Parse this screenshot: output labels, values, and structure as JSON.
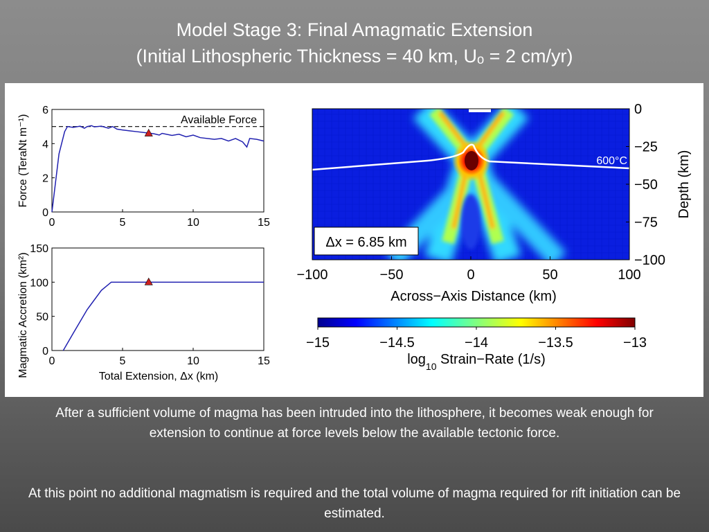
{
  "slide": {
    "title_line1": "Model Stage 3: Final Amagmatic Extension",
    "title_line2": "(Initial Lithospheric Thickness = 40 km, Uₒ = 2 cm/yr)",
    "caption_p1": "After a sufficient volume of magma has been intruded into the lithosphere, it becomes weak enough for extension to continue at force levels below the available tectonic force.",
    "caption_p2": "At this point no additional magmatism is required and the total volume of magma required for rift initiation can be estimated."
  },
  "chart_data": [
    {
      "type": "line",
      "ylabel": "Force (TeraNt m⁻¹)",
      "xlim": [
        0,
        15
      ],
      "ylim": [
        0,
        6
      ],
      "xticks": [
        "0",
        "5",
        "10",
        "15"
      ],
      "yticks": [
        "0",
        "2",
        "4",
        "6"
      ],
      "reference_line": {
        "y": 5.0,
        "label": "Available Force"
      },
      "series": [
        {
          "name": "Force",
          "color": "#2020b0",
          "points": [
            [
              0,
              0
            ],
            [
              0.5,
              3.4
            ],
            [
              0.9,
              4.7
            ],
            [
              1.1,
              5.0
            ],
            [
              1.5,
              4.95
            ],
            [
              2,
              5.02
            ],
            [
              2.3,
              4.9
            ],
            [
              2.5,
              5.0
            ],
            [
              2.8,
              5.05
            ],
            [
              3,
              4.98
            ],
            [
              3.5,
              5.02
            ],
            [
              4,
              4.9
            ],
            [
              4.3,
              5.0
            ],
            [
              4.6,
              4.85
            ],
            [
              5,
              4.8
            ],
            [
              5.5,
              4.75
            ],
            [
              6,
              4.7
            ],
            [
              6.8,
              4.62
            ],
            [
              7.2,
              4.58
            ],
            [
              7.6,
              4.5
            ],
            [
              7.8,
              4.6
            ],
            [
              8.5,
              4.48
            ],
            [
              9,
              4.55
            ],
            [
              9.5,
              4.4
            ],
            [
              10,
              4.5
            ],
            [
              10.5,
              4.35
            ],
            [
              11.5,
              4.25
            ],
            [
              12,
              4.3
            ],
            [
              12.5,
              4.15
            ],
            [
              13,
              4.3
            ],
            [
              13.5,
              4.1
            ],
            [
              13.8,
              3.8
            ],
            [
              14,
              4.3
            ],
            [
              14.5,
              4.25
            ],
            [
              15,
              4.15
            ]
          ]
        }
      ],
      "marker": {
        "x": 6.85,
        "y": 4.6,
        "color": "#cc2020"
      }
    },
    {
      "type": "line",
      "xlabel": "Total Extension, Δx (km)",
      "ylabel": "Magmatic Accretion (km²)",
      "xlim": [
        0,
        15
      ],
      "ylim": [
        0,
        150
      ],
      "xticks": [
        "0",
        "5",
        "10",
        "15"
      ],
      "yticks": [
        "0",
        "50",
        "100",
        "150"
      ],
      "series": [
        {
          "name": "Magmatic Accretion",
          "color": "#2020b0",
          "points": [
            [
              0.8,
              0
            ],
            [
              1.5,
              25
            ],
            [
              2.5,
              60
            ],
            [
              3.5,
              88
            ],
            [
              4.2,
              100
            ],
            [
              15,
              100
            ]
          ]
        }
      ],
      "marker": {
        "x": 6.85,
        "y": 100,
        "color": "#cc2020"
      }
    },
    {
      "type": "heatmap",
      "xlabel": "Across−Axis Distance (km)",
      "ylabel": "Depth (km)",
      "xlim": [
        -100,
        100
      ],
      "ylim": [
        -100,
        0
      ],
      "xticks": [
        "−100",
        "−50",
        "0",
        "50",
        "100"
      ],
      "yticks": [
        "0",
        "−25",
        "−50",
        "−75",
        "−100"
      ],
      "isotherm_label": "600°C",
      "annotation": "Δx = 6.85 km",
      "colorbar": {
        "range": [
          -15,
          -13
        ],
        "ticks": [
          "−15",
          "−14.5",
          "−14",
          "−13.5",
          "−13"
        ],
        "label_prefix": "log",
        "label_sub": "10",
        "label_suffix": " Strain−Rate (1/s)"
      }
    }
  ]
}
